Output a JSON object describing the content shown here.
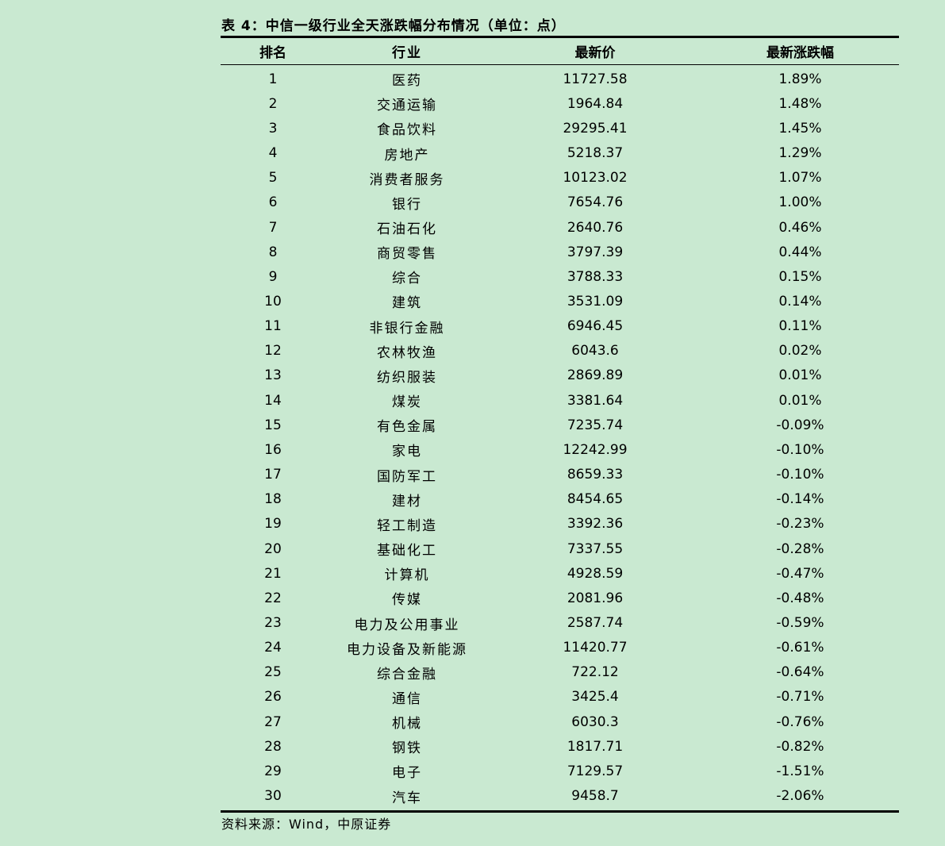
{
  "title": "表 4：中信一级行业全天涨跌幅分布情况（单位：点）",
  "headers": [
    "排名",
    "行业",
    "最新价",
    "最新涨跌幅"
  ],
  "rows": [
    [
      "1",
      "医药",
      "11727.58",
      "1.89%"
    ],
    [
      "2",
      "交通运输",
      "1964.84",
      "1.48%"
    ],
    [
      "3",
      "食品饮料",
      "29295.41",
      "1.45%"
    ],
    [
      "4",
      "房地产",
      "5218.37",
      "1.29%"
    ],
    [
      "5",
      "消费者服务",
      "10123.02",
      "1.07%"
    ],
    [
      "6",
      "银行",
      "7654.76",
      "1.00%"
    ],
    [
      "7",
      "石油石化",
      "2640.76",
      "0.46%"
    ],
    [
      "8",
      "商贸零售",
      "3797.39",
      "0.44%"
    ],
    [
      "9",
      "综合",
      "3788.33",
      "0.15%"
    ],
    [
      "10",
      "建筑",
      "3531.09",
      "0.14%"
    ],
    [
      "11",
      "非银行金融",
      "6946.45",
      "0.11%"
    ],
    [
      "12",
      "农林牧渔",
      "6043.6",
      "0.02%"
    ],
    [
      "13",
      "纺织服装",
      "2869.89",
      "0.01%"
    ],
    [
      "14",
      "煤炭",
      "3381.64",
      "0.01%"
    ],
    [
      "15",
      "有色金属",
      "7235.74",
      "-0.09%"
    ],
    [
      "16",
      "家电",
      "12242.99",
      "-0.10%"
    ],
    [
      "17",
      "国防军工",
      "8659.33",
      "-0.10%"
    ],
    [
      "18",
      "建材",
      "8454.65",
      "-0.14%"
    ],
    [
      "19",
      "轻工制造",
      "3392.36",
      "-0.23%"
    ],
    [
      "20",
      "基础化工",
      "7337.55",
      "-0.28%"
    ],
    [
      "21",
      "计算机",
      "4928.59",
      "-0.47%"
    ],
    [
      "22",
      "传媒",
      "2081.96",
      "-0.48%"
    ],
    [
      "23",
      "电力及公用事业",
      "2587.74",
      "-0.59%"
    ],
    [
      "24",
      "电力设备及新能源",
      "11420.77",
      "-0.61%"
    ],
    [
      "25",
      "综合金融",
      "722.12",
      "-0.64%"
    ],
    [
      "26",
      "通信",
      "3425.4",
      "-0.71%"
    ],
    [
      "27",
      "机械",
      "6030.3",
      "-0.76%"
    ],
    [
      "28",
      "钢铁",
      "1817.71",
      "-0.82%"
    ],
    [
      "29",
      "电子",
      "7129.57",
      "-1.51%"
    ],
    [
      "30",
      "汽车",
      "9458.7",
      "-2.06%"
    ]
  ],
  "footer": "资料来源：Wind，中原证券"
}
